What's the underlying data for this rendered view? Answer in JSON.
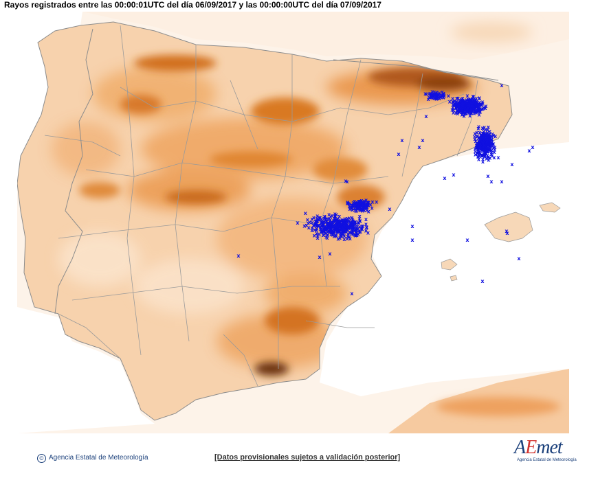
{
  "header": {
    "title": "Rayos registrados entre las 00:00:01UTC del día 06/09/2017 y las 00:00:00UTC del día 07/09/2017"
  },
  "map": {
    "region": "Península Ibérica y Baleares",
    "marker_symbol": "x",
    "marker_color": "#1010e0",
    "relief_colors": [
      "#fdf1e6",
      "#f8cfa4",
      "#f0a55f",
      "#e07a22",
      "#a04a0e",
      "#5a2a08"
    ],
    "sea_color": "#ffffff",
    "border_color": "#8c8c8c"
  },
  "footer": {
    "copyright_icon": "copyright-icon",
    "agency": "Agencia Estatal de Meteorología",
    "disclaimer": "[Datos provisionales sujetos a validación posterior]"
  },
  "logo": {
    "word_start": "A",
    "word_accent": "E",
    "word_end": "met",
    "subtitle": "Agencia Estatal de Meteorología"
  }
}
